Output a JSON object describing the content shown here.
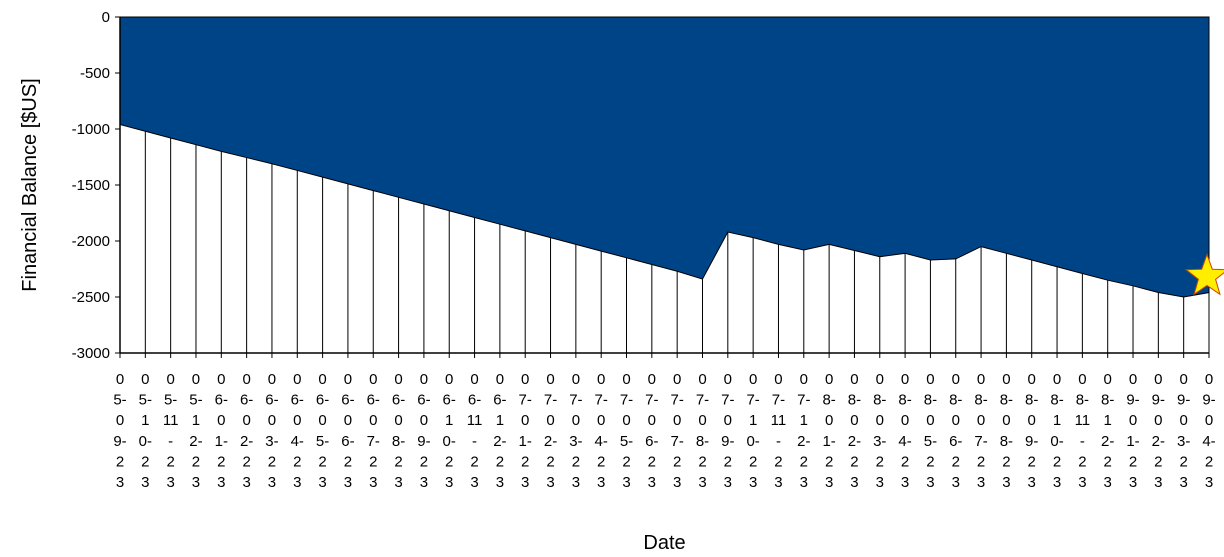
{
  "chart_data": {
    "type": "area",
    "title": "",
    "xlabel": "Date",
    "ylabel": "Financial Balance [$US]",
    "ylim": [
      -3000,
      0
    ],
    "yticks": [
      0,
      -500,
      -1000,
      -1500,
      -2000,
      -2500,
      -3000
    ],
    "grid": "vertical",
    "fill_color": "#004488",
    "x": [
      [
        "0",
        "5-",
        "0",
        "9-",
        "2",
        "3"
      ],
      [
        "0",
        "5-",
        "1",
        "0-",
        "2",
        "3"
      ],
      [
        "0",
        "5-",
        "11",
        "-",
        "2",
        "3"
      ],
      [
        "0",
        "5-",
        "1",
        "2-",
        "2",
        "3"
      ],
      [
        "0",
        "6-",
        "0",
        "1-",
        "2",
        "3"
      ],
      [
        "0",
        "6-",
        "0",
        "2-",
        "2",
        "3"
      ],
      [
        "0",
        "6-",
        "0",
        "3-",
        "2",
        "3"
      ],
      [
        "0",
        "6-",
        "0",
        "4-",
        "2",
        "3"
      ],
      [
        "0",
        "6-",
        "0",
        "5-",
        "2",
        "3"
      ],
      [
        "0",
        "6-",
        "0",
        "6-",
        "2",
        "3"
      ],
      [
        "0",
        "6-",
        "0",
        "7-",
        "2",
        "3"
      ],
      [
        "0",
        "6-",
        "0",
        "8-",
        "2",
        "3"
      ],
      [
        "0",
        "6-",
        "0",
        "9-",
        "2",
        "3"
      ],
      [
        "0",
        "6-",
        "1",
        "0-",
        "2",
        "3"
      ],
      [
        "0",
        "6-",
        "11",
        "-",
        "2",
        "3"
      ],
      [
        "0",
        "6-",
        "1",
        "2-",
        "2",
        "3"
      ],
      [
        "0",
        "7-",
        "0",
        "1-",
        "2",
        "3"
      ],
      [
        "0",
        "7-",
        "0",
        "2-",
        "2",
        "3"
      ],
      [
        "0",
        "7-",
        "0",
        "3-",
        "2",
        "3"
      ],
      [
        "0",
        "7-",
        "0",
        "4-",
        "2",
        "3"
      ],
      [
        "0",
        "7-",
        "0",
        "5-",
        "2",
        "3"
      ],
      [
        "0",
        "7-",
        "0",
        "6-",
        "2",
        "3"
      ],
      [
        "0",
        "7-",
        "0",
        "7-",
        "2",
        "3"
      ],
      [
        "0",
        "7-",
        "0",
        "8-",
        "2",
        "3"
      ],
      [
        "0",
        "7-",
        "0",
        "9-",
        "2",
        "3"
      ],
      [
        "0",
        "7-",
        "1",
        "0-",
        "2",
        "3"
      ],
      [
        "0",
        "7-",
        "11",
        "-",
        "2",
        "3"
      ],
      [
        "0",
        "7-",
        "1",
        "2-",
        "2",
        "3"
      ],
      [
        "0",
        "8-",
        "0",
        "1-",
        "2",
        "3"
      ],
      [
        "0",
        "8-",
        "0",
        "2-",
        "2",
        "3"
      ],
      [
        "0",
        "8-",
        "0",
        "3-",
        "2",
        "3"
      ],
      [
        "0",
        "8-",
        "0",
        "4-",
        "2",
        "3"
      ],
      [
        "0",
        "8-",
        "0",
        "5-",
        "2",
        "3"
      ],
      [
        "0",
        "8-",
        "0",
        "6-",
        "2",
        "3"
      ],
      [
        "0",
        "8-",
        "0",
        "7-",
        "2",
        "3"
      ],
      [
        "0",
        "8-",
        "0",
        "8-",
        "2",
        "3"
      ],
      [
        "0",
        "8-",
        "0",
        "9-",
        "2",
        "3"
      ],
      [
        "0",
        "8-",
        "1",
        "0-",
        "2",
        "3"
      ],
      [
        "0",
        "8-",
        "11",
        "-",
        "2",
        "3"
      ],
      [
        "0",
        "8-",
        "1",
        "2-",
        "2",
        "3"
      ],
      [
        "0",
        "9-",
        "0",
        "1-",
        "2",
        "3"
      ],
      [
        "0",
        "9-",
        "0",
        "2-",
        "2",
        "3"
      ],
      [
        "0",
        "9-",
        "0",
        "3-",
        "2",
        "3"
      ],
      [
        "0",
        "9-",
        "0",
        "4-",
        "2",
        "3"
      ]
    ],
    "values": [
      -960,
      -1020,
      -1080,
      -1140,
      -1200,
      -1255,
      -1310,
      -1370,
      -1430,
      -1490,
      -1550,
      -1610,
      -1670,
      -1730,
      -1790,
      -1850,
      -1910,
      -1970,
      -2030,
      -2090,
      -2150,
      -2210,
      -2270,
      -2340,
      -1920,
      -1970,
      -2030,
      -2080,
      -2030,
      -2085,
      -2140,
      -2110,
      -2170,
      -2160,
      -2050,
      -2110,
      -2170,
      -2230,
      -2290,
      -2350,
      -2400,
      -2460,
      -2500,
      -2460
    ],
    "marker": {
      "shape": "star",
      "color": "#ffee00"
    }
  }
}
